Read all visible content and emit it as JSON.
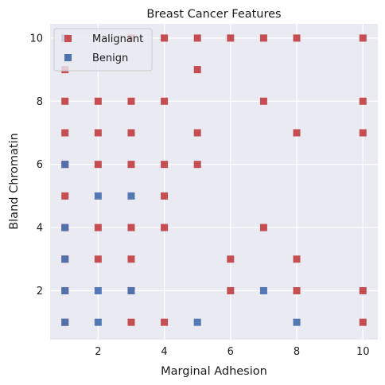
{
  "chart_data": {
    "type": "scatter",
    "title": "Breast Cancer Features",
    "xlabel": "Marginal Adhesion",
    "ylabel": "Bland Chromatin",
    "xlim": [
      0.55,
      10.45
    ],
    "ylim": [
      0.45,
      10.45
    ],
    "xticks": [
      2,
      4,
      6,
      8,
      10
    ],
    "yticks": [
      2,
      4,
      6,
      8,
      10
    ],
    "grid": true,
    "legend_position": "top-left",
    "series": [
      {
        "name": "Malignant",
        "color": "#c44e52",
        "marker": "square",
        "points": [
          [
            1,
            10
          ],
          [
            3,
            10
          ],
          [
            4,
            10
          ],
          [
            5,
            10
          ],
          [
            6,
            10
          ],
          [
            7,
            10
          ],
          [
            8,
            10
          ],
          [
            10,
            10
          ],
          [
            1,
            9
          ],
          [
            5,
            9
          ],
          [
            1,
            8
          ],
          [
            2,
            8
          ],
          [
            3,
            8
          ],
          [
            4,
            8
          ],
          [
            7,
            8
          ],
          [
            10,
            8
          ],
          [
            1,
            7
          ],
          [
            2,
            7
          ],
          [
            3,
            7
          ],
          [
            5,
            7
          ],
          [
            8,
            7
          ],
          [
            10,
            7
          ],
          [
            1,
            6
          ],
          [
            2,
            6
          ],
          [
            3,
            6
          ],
          [
            4,
            6
          ],
          [
            5,
            6
          ],
          [
            1,
            5
          ],
          [
            4,
            5
          ],
          [
            1,
            4
          ],
          [
            2,
            4
          ],
          [
            3,
            4
          ],
          [
            4,
            4
          ],
          [
            7,
            4
          ],
          [
            1,
            3
          ],
          [
            2,
            3
          ],
          [
            3,
            3
          ],
          [
            6,
            3
          ],
          [
            8,
            3
          ],
          [
            1,
            2
          ],
          [
            3,
            2
          ],
          [
            6,
            2
          ],
          [
            8,
            2
          ],
          [
            10,
            2
          ],
          [
            1,
            1
          ],
          [
            3,
            1
          ],
          [
            4,
            1
          ],
          [
            10,
            1
          ]
        ]
      },
      {
        "name": "Benign",
        "color": "#4c72b0",
        "marker": "square",
        "points": [
          [
            1,
            10
          ],
          [
            1,
            6
          ],
          [
            2,
            5
          ],
          [
            3,
            5
          ],
          [
            1,
            4
          ],
          [
            1,
            3
          ],
          [
            1,
            2
          ],
          [
            2,
            2
          ],
          [
            3,
            2
          ],
          [
            7,
            2
          ],
          [
            1,
            1
          ],
          [
            2,
            1
          ],
          [
            5,
            1
          ],
          [
            8,
            1
          ]
        ]
      }
    ]
  }
}
